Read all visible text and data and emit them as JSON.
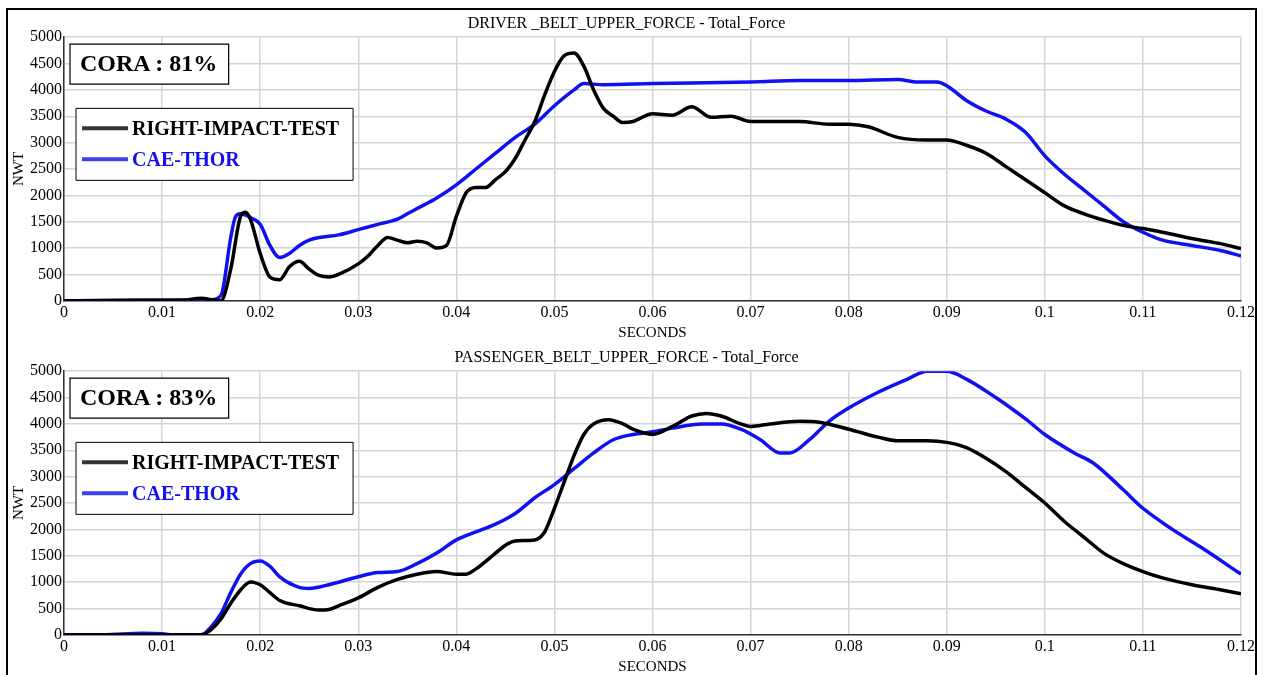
{
  "chart_data": [
    {
      "type": "line",
      "title": "DRIVER _BELT_UPPER_FORCE - Total_Force",
      "xlabel": "SECONDS",
      "ylabel": "NWT",
      "annotations": [
        "CORA : 81%"
      ],
      "legend": "left",
      "grid": true,
      "xlim": [
        0,
        0.12
      ],
      "xticks": [
        0,
        0.01,
        0.02,
        0.03,
        0.04,
        0.05,
        0.06,
        0.07,
        0.08,
        0.09,
        0.1,
        0.11,
        0.12
      ],
      "ylim": [
        0,
        5000
      ],
      "yticks": [
        0,
        500,
        1000,
        1500,
        2000,
        2500,
        3000,
        3500,
        4000,
        4500,
        5000
      ],
      "series": [
        {
          "name": "RIGHT-IMPACT-TEST",
          "color": "#000000",
          "x": [
            0,
            0.008,
            0.012,
            0.014,
            0.015,
            0.016,
            0.017,
            0.018,
            0.0185,
            0.019,
            0.02,
            0.021,
            0.022,
            0.023,
            0.024,
            0.025,
            0.026,
            0.027,
            0.028,
            0.03,
            0.031,
            0.032,
            0.033,
            0.034,
            0.035,
            0.036,
            0.037,
            0.038,
            0.039,
            0.04,
            0.041,
            0.042,
            0.043,
            0.044,
            0.045,
            0.046,
            0.047,
            0.048,
            0.049,
            0.05,
            0.051,
            0.052,
            0.053,
            0.054,
            0.055,
            0.056,
            0.057,
            0.058,
            0.06,
            0.062,
            0.064,
            0.066,
            0.068,
            0.07,
            0.075,
            0.078,
            0.08,
            0.082,
            0.085,
            0.088,
            0.09,
            0.092,
            0.094,
            0.096,
            0.098,
            0.1,
            0.102,
            0.104,
            0.106,
            0.108,
            0.11,
            0.112,
            0.115,
            0.118,
            0.12
          ],
          "values": [
            0,
            10,
            10,
            50,
            20,
            0,
            600,
            1600,
            1680,
            1550,
            900,
            450,
            400,
            650,
            750,
            600,
            480,
            450,
            500,
            700,
            850,
            1050,
            1200,
            1150,
            1100,
            1130,
            1100,
            1000,
            1050,
            1600,
            2050,
            2150,
            2150,
            2300,
            2450,
            2700,
            3050,
            3400,
            3900,
            4350,
            4650,
            4700,
            4450,
            4000,
            3650,
            3500,
            3380,
            3400,
            3550,
            3520,
            3680,
            3480,
            3500,
            3400,
            3400,
            3350,
            3350,
            3300,
            3100,
            3050,
            3050,
            2950,
            2800,
            2550,
            2300,
            2050,
            1800,
            1650,
            1530,
            1430,
            1370,
            1300,
            1180,
            1080,
            990
          ]
        },
        {
          "name": "CAE-THOR",
          "color": "#1010f0",
          "x": [
            0,
            0.015,
            0.016,
            0.017,
            0.0175,
            0.018,
            0.019,
            0.02,
            0.021,
            0.022,
            0.023,
            0.024,
            0.025,
            0.026,
            0.028,
            0.03,
            0.032,
            0.034,
            0.035,
            0.036,
            0.038,
            0.04,
            0.042,
            0.044,
            0.046,
            0.048,
            0.05,
            0.052,
            0.053,
            0.055,
            0.06,
            0.07,
            0.075,
            0.08,
            0.085,
            0.087,
            0.089,
            0.09,
            0.092,
            0.094,
            0.096,
            0.098,
            0.1,
            0.102,
            0.104,
            0.106,
            0.108,
            0.11,
            0.112,
            0.115,
            0.118,
            0.12
          ],
          "values": [
            0,
            20,
            100,
            1200,
            1600,
            1650,
            1580,
            1450,
            1050,
            820,
            900,
            1050,
            1150,
            1200,
            1250,
            1350,
            1450,
            1550,
            1650,
            1750,
            1950,
            2200,
            2500,
            2800,
            3100,
            3350,
            3700,
            4000,
            4120,
            4100,
            4120,
            4150,
            4180,
            4180,
            4200,
            4150,
            4150,
            4080,
            3800,
            3600,
            3450,
            3200,
            2750,
            2400,
            2100,
            1800,
            1500,
            1300,
            1150,
            1050,
            950,
            850
          ]
        }
      ]
    },
    {
      "type": "line",
      "title": "PASSENGER_BELT_UPPER_FORCE - Total_Force",
      "xlabel": "SECONDS",
      "ylabel": "NWT",
      "annotations": [
        "CORA : 83%"
      ],
      "legend": "left",
      "grid": true,
      "xlim": [
        0,
        0.12
      ],
      "xticks": [
        0,
        0.01,
        0.02,
        0.03,
        0.04,
        0.05,
        0.06,
        0.07,
        0.08,
        0.09,
        0.1,
        0.11,
        0.12
      ],
      "ylim": [
        0,
        5000
      ],
      "yticks": [
        0,
        500,
        1000,
        1500,
        2000,
        2500,
        3000,
        3500,
        4000,
        4500,
        5000
      ],
      "series": [
        {
          "name": "RIGHT-IMPACT-TEST",
          "color": "#000000",
          "x": [
            0,
            0.011,
            0.014,
            0.015,
            0.016,
            0.017,
            0.018,
            0.019,
            0.02,
            0.021,
            0.022,
            0.024,
            0.026,
            0.027,
            0.028,
            0.03,
            0.032,
            0.034,
            0.036,
            0.038,
            0.04,
            0.041,
            0.042,
            0.044,
            0.045,
            0.046,
            0.048,
            0.049,
            0.05,
            0.051,
            0.052,
            0.053,
            0.054,
            0.0555,
            0.057,
            0.058,
            0.06,
            0.062,
            0.064,
            0.0655,
            0.067,
            0.069,
            0.07,
            0.072,
            0.075,
            0.077,
            0.08,
            0.083,
            0.085,
            0.088,
            0.09,
            0.092,
            0.094,
            0.096,
            0.098,
            0.1,
            0.102,
            0.104,
            0.106,
            0.108,
            0.11,
            0.112,
            0.115,
            0.118,
            0.12
          ],
          "values": [
            0,
            0,
            0,
            100,
            300,
            600,
            850,
            1000,
            950,
            800,
            650,
            550,
            470,
            480,
            550,
            700,
            900,
            1050,
            1150,
            1200,
            1150,
            1150,
            1250,
            1550,
            1700,
            1780,
            1800,
            1950,
            2400,
            2900,
            3400,
            3800,
            4000,
            4080,
            4000,
            3900,
            3800,
            3950,
            4150,
            4200,
            4150,
            4000,
            3950,
            4000,
            4050,
            4030,
            3900,
            3750,
            3680,
            3680,
            3650,
            3550,
            3350,
            3100,
            2800,
            2500,
            2150,
            1850,
            1550,
            1350,
            1200,
            1080,
            950,
            850,
            780
          ]
        },
        {
          "name": "CAE-THOR",
          "color": "#1010f0",
          "x": [
            0,
            0.004,
            0.008,
            0.01,
            0.011,
            0.014,
            0.015,
            0.016,
            0.017,
            0.018,
            0.019,
            0.02,
            0.021,
            0.022,
            0.024,
            0.025,
            0.027,
            0.03,
            0.032,
            0.034,
            0.036,
            0.038,
            0.04,
            0.042,
            0.044,
            0.046,
            0.048,
            0.05,
            0.052,
            0.054,
            0.056,
            0.058,
            0.06,
            0.062,
            0.065,
            0.067,
            0.069,
            0.071,
            0.073,
            0.074,
            0.076,
            0.078,
            0.08,
            0.083,
            0.086,
            0.088,
            0.09,
            0.092,
            0.095,
            0.098,
            0.1,
            0.103,
            0.105,
            0.108,
            0.11,
            0.113,
            0.116,
            0.12
          ],
          "values": [
            0,
            0,
            30,
            20,
            0,
            0,
            150,
            400,
            800,
            1150,
            1350,
            1400,
            1300,
            1100,
            900,
            880,
            950,
            1100,
            1180,
            1200,
            1350,
            1550,
            1800,
            1950,
            2100,
            2300,
            2600,
            2850,
            3150,
            3450,
            3700,
            3800,
            3850,
            3920,
            4000,
            4000,
            3900,
            3700,
            3450,
            3450,
            3700,
            4050,
            4300,
            4600,
            4850,
            5000,
            5000,
            4850,
            4500,
            4100,
            3800,
            3450,
            3250,
            2750,
            2400,
            2000,
            1650,
            1150
          ]
        }
      ]
    }
  ]
}
